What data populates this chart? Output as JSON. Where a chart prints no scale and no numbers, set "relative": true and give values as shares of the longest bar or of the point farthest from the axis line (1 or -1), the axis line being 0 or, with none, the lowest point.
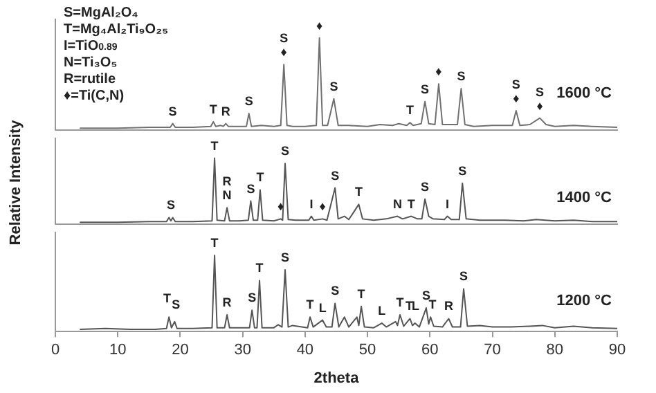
{
  "chart_data": [
    {
      "type": "line",
      "relative": true,
      "xlim": [
        0,
        90
      ],
      "xticks": [
        0,
        10,
        20,
        30,
        40,
        50,
        60,
        70,
        80,
        90
      ],
      "tick_labels": false,
      "series": [
        {
          "name": "1600 °C",
          "color": "#707070",
          "x": [
            4,
            10,
            15,
            18.4,
            18.8,
            19.2,
            22,
            24.9,
            25.3,
            25.7,
            26.5,
            26.9,
            27.3,
            27.7,
            29,
            30.6,
            31.0,
            31.4,
            33,
            35,
            36.1,
            36.6,
            37.1,
            38,
            40,
            41.8,
            42.3,
            42.8,
            43.6,
            44.6,
            45.3,
            47,
            50,
            52,
            54,
            55,
            56.3,
            56.8,
            57.3,
            58.6,
            59.2,
            59.8,
            60.8,
            61.4,
            62,
            63,
            64.4,
            65.0,
            65.6,
            67,
            70,
            73.2,
            73.8,
            74.4,
            76,
            77.6,
            78.6,
            80,
            83,
            86,
            90
          ],
          "values": [
            0.02,
            0.02,
            0.03,
            0.03,
            0.07,
            0.03,
            0.03,
            0.04,
            0.09,
            0.04,
            0.05,
            0.04,
            0.07,
            0.04,
            0.04,
            0.04,
            0.18,
            0.04,
            0.05,
            0.04,
            0.05,
            0.71,
            0.05,
            0.04,
            0.04,
            0.05,
            1,
            0.05,
            0.05,
            0.34,
            0.05,
            0.05,
            0.04,
            0.06,
            0.05,
            0.07,
            0.05,
            0.08,
            0.05,
            0.07,
            0.31,
            0.07,
            0.06,
            0.5,
            0.06,
            0.06,
            0.06,
            0.45,
            0.06,
            0.04,
            0.05,
            0.05,
            0.21,
            0.05,
            0.06,
            0.13,
            0.06,
            0.04,
            0.05,
            0.04,
            0.03
          ]
        }
      ],
      "annotations": [
        "S=MgAl₂O₄",
        "T=Mg₄Al₂Ti₉O₂₅",
        "I=TiO$_{0.89}$",
        "N=Ti₃O₅",
        "R=rutile",
        "♦=Ti(C,N)",
        {
          "text": "S",
          "x": 18.8,
          "y": 0.07
        },
        {
          "text": "T",
          "x": 25.3,
          "y": 0.09
        },
        {
          "text": "R",
          "x": 27.3,
          "y": 0.07
        },
        {
          "text": "S",
          "x": 31.0,
          "y": 0.18
        },
        {
          "text": "♦",
          "x": 36.6,
          "y": 0.71
        },
        {
          "text": "S",
          "x": 36.6,
          "y": 0.71
        },
        {
          "text": "♦",
          "x": 42.3,
          "y": 1
        },
        {
          "text": "S",
          "x": 44.6,
          "y": 0.34
        },
        {
          "text": "T",
          "x": 56.8,
          "y": 0.08
        },
        {
          "text": "S",
          "x": 59.2,
          "y": 0.31
        },
        {
          "text": "♦",
          "x": 61.4,
          "y": 0.5
        },
        {
          "text": "S",
          "x": 65.0,
          "y": 0.45
        },
        {
          "text": "♦",
          "x": 73.8,
          "y": 0.21
        },
        {
          "text": "S",
          "x": 73.8,
          "y": 0.21
        },
        {
          "text": "♦",
          "x": 77.6,
          "y": 0.13
        },
        {
          "text": "S",
          "x": 77.6,
          "y": 0.13
        }
      ]
    },
    {
      "type": "line",
      "relative": true,
      "xlim": [
        0,
        90
      ],
      "xticks": [
        0,
        10,
        20,
        30,
        40,
        50,
        60,
        70,
        80,
        90
      ],
      "tick_labels": false,
      "ylabel": "Relative Intensity",
      "series": [
        {
          "name": "1400 °C",
          "color": "#555555",
          "x": [
            4,
            10,
            15,
            17.8,
            18.2,
            18.5,
            18.8,
            19.2,
            22,
            25.1,
            25.5,
            25.9,
            27.1,
            27.5,
            27.9,
            29.5,
            30.9,
            31.3,
            31.7,
            32.4,
            32.8,
            33.2,
            35,
            36.1,
            36.4,
            36.8,
            37.3,
            38.5,
            40.6,
            41,
            41.4,
            42.8,
            43.5,
            44.8,
            45.3,
            46.3,
            47,
            48.6,
            49.2,
            51,
            53,
            54.8,
            55.6,
            57,
            58,
            58.7,
            59.2,
            59.8,
            60.5,
            62.3,
            62.8,
            63.4,
            64.7,
            65.2,
            65.8,
            68,
            72,
            75,
            77,
            80,
            83,
            86,
            90
          ],
          "values": [
            0.03,
            0.03,
            0.04,
            0.04,
            0.1,
            0.05,
            0.1,
            0.04,
            0.04,
            0.05,
            1,
            0.06,
            0.05,
            0.25,
            0.05,
            0.05,
            0.06,
            0.35,
            0.06,
            0.06,
            0.52,
            0.06,
            0.05,
            0.08,
            0.06,
            0.92,
            0.07,
            0.06,
            0.06,
            0.12,
            0.06,
            0.08,
            0.06,
            0.55,
            0.08,
            0.12,
            0.07,
            0.3,
            0.08,
            0.06,
            0.08,
            0.12,
            0.08,
            0.12,
            0.08,
            0.08,
            0.38,
            0.12,
            0.08,
            0.07,
            0.12,
            0.07,
            0.07,
            0.62,
            0.08,
            0.06,
            0.06,
            0.05,
            0.07,
            0.05,
            0.06,
            0.04,
            0.04
          ]
        }
      ],
      "annotations": [
        {
          "text": "S",
          "x": 18.5,
          "y": 0.1
        },
        {
          "text": "T",
          "x": 25.5,
          "y": 1
        },
        {
          "text": "N",
          "x": 27.5,
          "y": 0.25
        },
        {
          "text": "R",
          "x": 27.5,
          "y": 0.25
        },
        {
          "text": "S",
          "x": 31.3,
          "y": 0.35
        },
        {
          "text": "T",
          "x": 32.8,
          "y": 0.52
        },
        {
          "text": "♦",
          "x": 36.1,
          "y": 0.08
        },
        {
          "text": "S",
          "x": 36.8,
          "y": 0.92
        },
        {
          "text": "I",
          "x": 41,
          "y": 0.12
        },
        {
          "text": "♦",
          "x": 42.8,
          "y": 0.08
        },
        {
          "text": "S",
          "x": 44.8,
          "y": 0.55
        },
        {
          "text": "T",
          "x": 48.6,
          "y": 0.3
        },
        {
          "text": "N",
          "x": 54.8,
          "y": 0.12
        },
        {
          "text": "T",
          "x": 57,
          "y": 0.12
        },
        {
          "text": "S",
          "x": 59.2,
          "y": 0.38
        },
        {
          "text": "I",
          "x": 62.8,
          "y": 0.12
        },
        {
          "text": "S",
          "x": 65.2,
          "y": 0.62
        }
      ]
    },
    {
      "type": "line",
      "relative": true,
      "xlim": [
        0,
        90
      ],
      "xticks": [
        0,
        10,
        20,
        30,
        40,
        50,
        60,
        70,
        80,
        90
      ],
      "tick_labels": "x",
      "xlabel": "2theta",
      "series": [
        {
          "name": "1200 °C",
          "color": "#555555",
          "x": [
            4,
            8,
            12,
            16,
            17.8,
            18.2,
            18.6,
            19.1,
            19.5,
            22,
            25.1,
            25.5,
            25.9,
            27.1,
            27.5,
            27.9,
            30,
            31.1,
            31.5,
            31.9,
            32.3,
            32.7,
            33.1,
            35,
            35.7,
            36.3,
            36.8,
            37.3,
            38,
            40.4,
            40.8,
            41.3,
            42.8,
            43.4,
            44.3,
            44.8,
            45.4,
            46.3,
            47,
            48.3,
            48.6,
            49,
            49.5,
            51,
            52.3,
            53,
            54.5,
            54.8,
            55.2,
            55.8,
            56.8,
            57.2,
            57.6,
            58.3,
            59.4,
            59.8,
            60.1,
            60.6,
            62,
            63,
            63.6,
            64.9,
            65.4,
            66,
            68,
            70,
            73,
            76,
            78,
            80,
            83,
            86,
            90
          ],
          "values": [
            0.03,
            0.04,
            0.03,
            0.03,
            0.04,
            0.19,
            0.05,
            0.13,
            0.04,
            0.04,
            0.05,
            1,
            0.05,
            0.05,
            0.22,
            0.05,
            0.05,
            0.05,
            0.28,
            0.05,
            0.05,
            0.67,
            0.05,
            0.05,
            0.09,
            0.06,
            0.81,
            0.06,
            0.08,
            0.05,
            0.19,
            0.06,
            0.15,
            0.06,
            0.06,
            0.37,
            0.06,
            0.19,
            0.06,
            0.19,
            0.08,
            0.33,
            0.06,
            0.05,
            0.11,
            0.06,
            0.13,
            0.08,
            0.22,
            0.07,
            0.17,
            0.08,
            0.11,
            0.06,
            0.31,
            0.1,
            0.19,
            0.07,
            0.06,
            0.17,
            0.06,
            0.06,
            0.56,
            0.07,
            0.08,
            0.06,
            0.06,
            0.07,
            0.08,
            0.05,
            0.07,
            0.05,
            0.04
          ]
        }
      ],
      "annotations": [
        {
          "text": "T",
          "x": 17.9,
          "y": 0.27
        },
        {
          "text": "S",
          "x": 19.3,
          "y": 0.19
        },
        {
          "text": "T",
          "x": 25.5,
          "y": 1
        },
        {
          "text": "R",
          "x": 27.5,
          "y": 0.22
        },
        {
          "text": "S",
          "x": 31.5,
          "y": 0.28
        },
        {
          "text": "T",
          "x": 32.7,
          "y": 0.67
        },
        {
          "text": "S",
          "x": 36.8,
          "y": 0.81
        },
        {
          "text": "T",
          "x": 40.8,
          "y": 0.19
        },
        {
          "text": "L",
          "x": 42.8,
          "y": 0.15
        },
        {
          "text": "S",
          "x": 44.8,
          "y": 0.37
        },
        {
          "text": "T",
          "x": 49,
          "y": 0.33
        },
        {
          "text": "L",
          "x": 52.3,
          "y": 0.11
        },
        {
          "text": "T",
          "x": 55.2,
          "y": 0.22
        },
        {
          "text": "T",
          "x": 56.7,
          "y": 0.17
        },
        {
          "text": "L",
          "x": 57.7,
          "y": 0.17
        },
        {
          "text": "S",
          "x": 59.4,
          "y": 0.31
        },
        {
          "text": "T",
          "x": 60.4,
          "y": 0.19
        },
        {
          "text": "R",
          "x": 63,
          "y": 0.17
        },
        {
          "text": "S",
          "x": 65.4,
          "y": 0.56
        }
      ]
    }
  ]
}
